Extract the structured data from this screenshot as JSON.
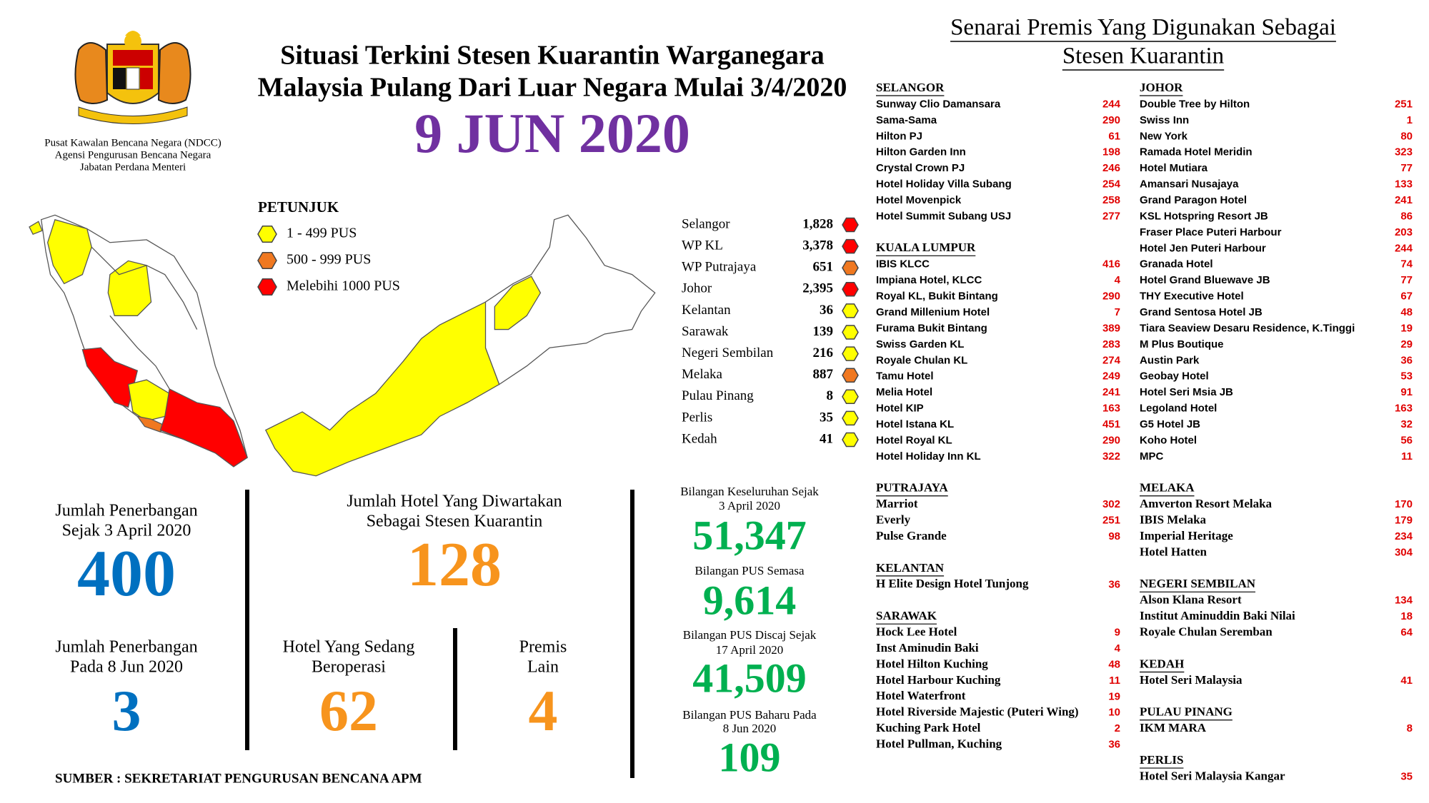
{
  "header": {
    "agency": [
      "Pusat Kawalan Bencana Negara (NDCC)",
      "Agensi Pengurusan Bencana Negara",
      "Jabatan Perdana Menteri"
    ],
    "title": [
      "Situasi Terkini Stesen Kuarantin Warganegara",
      "Malaysia Pulang Dari Luar Negara Mulai 3/4/2020"
    ],
    "date": "9 JUN 2020"
  },
  "legend": {
    "title": "PETUNJUK",
    "items": [
      {
        "label": "1 - 499 PUS",
        "color": "#ffff00"
      },
      {
        "label": "500 - 999 PUS",
        "color": "#f07820"
      },
      {
        "label": "Melebihi 1000 PUS",
        "color": "#ff0000"
      }
    ]
  },
  "states": [
    {
      "name": "Selangor",
      "value": "1,828",
      "color": "#ff0000"
    },
    {
      "name": "WP KL",
      "value": "3,378",
      "color": "#ff0000"
    },
    {
      "name": "WP Putrajaya",
      "value": "651",
      "color": "#f07820"
    },
    {
      "name": "Johor",
      "value": "2,395",
      "color": "#ff0000"
    },
    {
      "name": "Kelantan",
      "value": "36",
      "color": "#ffff00"
    },
    {
      "name": "Sarawak",
      "value": "139",
      "color": "#ffff00"
    },
    {
      "name": "Negeri Sembilan",
      "value": "216",
      "color": "#ffff00"
    },
    {
      "name": "Melaka",
      "value": "887",
      "color": "#f07820"
    },
    {
      "name": "Pulau Pinang",
      "value": "8",
      "color": "#ffff00"
    },
    {
      "name": "Perlis",
      "value": "35",
      "color": "#ffff00"
    },
    {
      "name": "Kedah",
      "value": "41",
      "color": "#ffff00"
    }
  ],
  "stats": [
    {
      "label": [
        "Jumlah Penerbangan",
        "Sejak 3 April 2020"
      ],
      "value": "400",
      "color": "#0070c0"
    },
    {
      "label": [
        "Jumlah Hotel Yang Diwartakan",
        "Sebagai Stesen Kuarantin"
      ],
      "value": "128",
      "color": "#f7941d"
    },
    {
      "label": [
        "Jumlah Penerbangan",
        "Pada 8 Jun 2020"
      ],
      "value": "3",
      "color": "#0070c0"
    },
    {
      "label": [
        "Hotel Yang Sedang",
        "Beroperasi"
      ],
      "value": "62",
      "color": "#f7941d"
    },
    {
      "label": [
        "Premis",
        "Lain"
      ],
      "value": "4",
      "color": "#f7941d"
    }
  ],
  "totals": [
    {
      "label": [
        "Bilangan Keseluruhan Sejak",
        "3 April 2020"
      ],
      "value": "51,347"
    },
    {
      "label": [
        "Bilangan PUS Semasa"
      ],
      "value": "9,614"
    },
    {
      "label": [
        "Bilangan PUS Discaj Sejak",
        "17 April 2020"
      ],
      "value": "41,509"
    },
    {
      "label": [
        "Bilangan PUS Baharu Pada",
        "8 Jun 2020"
      ],
      "value": "109"
    }
  ],
  "source": "SUMBER : SEKRETARIAT PENGURUSAN BENCANA APM",
  "premises": {
    "title": [
      "Senarai Premis Yang Digunakan Sebagai",
      "Stesen Kuarantin"
    ],
    "columns": [
      {
        "sections": [
          {
            "name": "SELANGOR",
            "hotels": [
              {
                "name": "Sunway Clio Damansara",
                "count": 244
              },
              {
                "name": "Sama-Sama",
                "count": 290
              },
              {
                "name": "Hilton PJ",
                "count": 61
              },
              {
                "name": "Hilton Garden Inn",
                "count": 198
              },
              {
                "name": "Crystal Crown PJ",
                "count": 246
              },
              {
                "name": "Hotel Holiday Villa Subang",
                "count": 254
              },
              {
                "name": "Hotel Movenpick",
                "count": 258
              },
              {
                "name": "Hotel Summit Subang USJ",
                "count": 277
              }
            ]
          },
          {
            "name": "KUALA LUMPUR",
            "hotels": [
              {
                "name": "IBIS KLCC",
                "count": 416
              },
              {
                "name": "Impiana Hotel, KLCC",
                "count": 4
              },
              {
                "name": "Royal KL, Bukit Bintang",
                "count": 290
              },
              {
                "name": "Grand Millenium Hotel",
                "count": 7
              },
              {
                "name": "Furama Bukit Bintang",
                "count": 389
              },
              {
                "name": "Swiss Garden KL",
                "count": 283
              },
              {
                "name": "Royale Chulan KL",
                "count": 274
              },
              {
                "name": "Tamu Hotel",
                "count": 249
              },
              {
                "name": "Melia Hotel",
                "count": 241
              },
              {
                "name": "Hotel KIP",
                "count": 163
              },
              {
                "name": "Hotel Istana KL",
                "count": 451
              },
              {
                "name": "Hotel Royal KL",
                "count": 290
              },
              {
                "name": "Hotel Holiday Inn KL",
                "count": 322
              }
            ]
          },
          {
            "name": "PUTRAJAYA",
            "hotels": [
              {
                "name": "Marriot",
                "count": 302
              },
              {
                "name": "Everly",
                "count": 251
              },
              {
                "name": "Pulse Grande",
                "count": 98
              }
            ]
          },
          {
            "name": "KELANTAN",
            "hotels": [
              {
                "name": "H Elite Design Hotel Tunjong",
                "count": 36
              }
            ]
          },
          {
            "name": "SARAWAK",
            "hotels": [
              {
                "name": "Hock Lee Hotel",
                "count": 9
              },
              {
                "name": "Inst Aminudin Baki",
                "count": 4
              },
              {
                "name": "Hotel Hilton Kuching",
                "count": 48
              },
              {
                "name": "Hotel Harbour Kuching",
                "count": 11
              },
              {
                "name": "Hotel Waterfront",
                "count": 19
              },
              {
                "name": "Hotel Riverside Majestic (Puteri Wing)",
                "count": 10
              },
              {
                "name": "Kuching Park Hotel",
                "count": 2
              },
              {
                "name": "Hotel Pullman, Kuching",
                "count": 36
              }
            ]
          }
        ]
      },
      {
        "sections": [
          {
            "name": "JOHOR",
            "hotels": [
              {
                "name": "Double Tree by Hilton",
                "count": 251
              },
              {
                "name": "Swiss Inn",
                "count": 1
              },
              {
                "name": "New York",
                "count": 80
              },
              {
                "name": "Ramada Hotel Meridin",
                "count": 323
              },
              {
                "name": "Hotel Mutiara",
                "count": 77
              },
              {
                "name": "Amansari Nusajaya",
                "count": 133
              },
              {
                "name": "Grand Paragon Hotel",
                "count": 241
              },
              {
                "name": "KSL Hotspring Resort JB",
                "count": 86
              },
              {
                "name": "Fraser Place Puteri Harbour",
                "count": 203
              },
              {
                "name": "Hotel Jen Puteri Harbour",
                "count": 244
              },
              {
                "name": "Granada Hotel",
                "count": 74
              },
              {
                "name": "Hotel Grand Bluewave JB",
                "count": 77
              },
              {
                "name": "THY Executive Hotel",
                "count": 67
              },
              {
                "name": "Grand Sentosa Hotel JB",
                "count": 48
              },
              {
                "name": "Tiara Seaview Desaru Residence, K.Tinggi",
                "count": 19
              },
              {
                "name": "M Plus Boutique",
                "count": 29
              },
              {
                "name": "Austin Park",
                "count": 36
              },
              {
                "name": "Geobay Hotel",
                "count": 53
              },
              {
                "name": "Hotel Seri Msia JB",
                "count": 91
              },
              {
                "name": "Legoland Hotel",
                "count": 163
              },
              {
                "name": "G5 Hotel JB",
                "count": 32
              },
              {
                "name": "Koho Hotel",
                "count": 56
              },
              {
                "name": "MPC",
                "count": 11
              }
            ]
          },
          {
            "name": "MELAKA",
            "hotels": [
              {
                "name": "Amverton Resort Melaka",
                "count": 170
              },
              {
                "name": "IBIS Melaka",
                "count": 179
              },
              {
                "name": "Imperial Heritage",
                "count": 234
              },
              {
                "name": "Hotel Hatten",
                "count": 304
              }
            ]
          },
          {
            "name": "NEGERI SEMBILAN",
            "hotels": [
              {
                "name": "Alson Klana Resort",
                "count": 134
              },
              {
                "name": "Institut Aminuddin Baki Nilai",
                "count": 18
              },
              {
                "name": "Royale Chulan Seremban",
                "count": 64
              }
            ]
          },
          {
            "name": "KEDAH",
            "hotels": [
              {
                "name": "Hotel Seri Malaysia",
                "count": 41
              }
            ]
          },
          {
            "name": "PULAU PINANG",
            "hotels": [
              {
                "name": "IKM MARA",
                "count": 8
              }
            ]
          },
          {
            "name": "PERLIS",
            "hotels": [
              {
                "name": "Hotel Seri Malaysia Kangar",
                "count": 35
              }
            ]
          }
        ]
      }
    ]
  }
}
